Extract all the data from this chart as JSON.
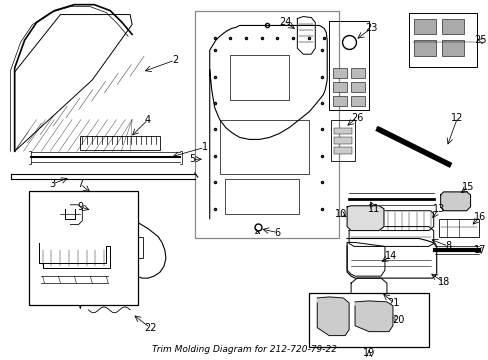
{
  "title": "Trim Molding Diagram for 212-720-79-22",
  "bg_color": "#ffffff",
  "fig_width": 4.89,
  "fig_height": 3.6,
  "dpi": 100
}
